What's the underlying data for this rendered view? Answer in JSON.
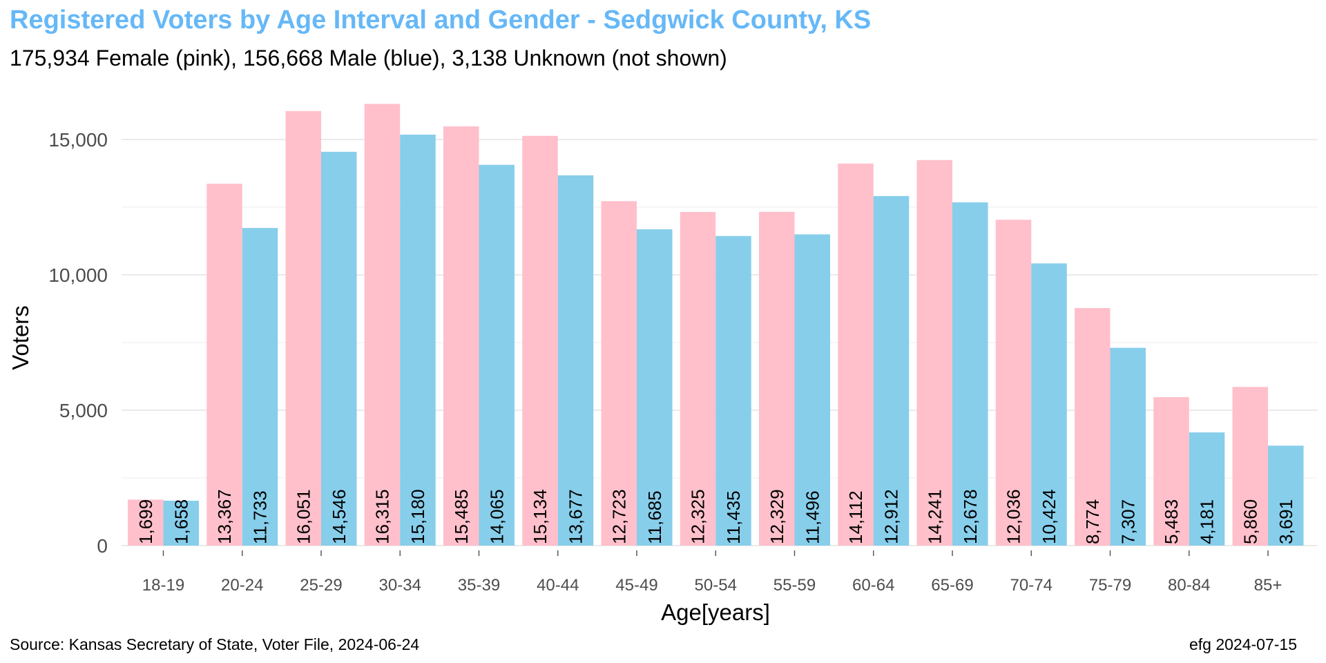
{
  "title": "Registered Voters by Age Interval and Gender - Sedgwick County, KS",
  "subtitle": "175,934 Female (pink),  156,668 Male (blue),  3,138 Unknown (not shown)",
  "caption_source": "Source: Kansas Secretary of State, Voter File, 2024-06-24",
  "caption_credit": "efg 2024-07-15",
  "chart_data": {
    "type": "bar",
    "title": "Registered Voters by Age Interval and Gender - Sedgwick County, KS",
    "subtitle": "175,934 Female (pink),  156,668 Male (blue),  3,138 Unknown (not shown)",
    "xlabel": "Age[years]",
    "ylabel": "Voters",
    "ylim": [
      0,
      16315
    ],
    "yticks": [
      0,
      5000,
      10000,
      15000
    ],
    "ytick_labels": [
      "0",
      "5,000",
      "10,000",
      "15,000"
    ],
    "grid": true,
    "legend": "none",
    "categories": [
      "18-19",
      "20-24",
      "25-29",
      "30-34",
      "35-39",
      "40-44",
      "45-49",
      "50-54",
      "55-59",
      "60-64",
      "65-69",
      "70-74",
      "75-79",
      "80-84",
      "85+"
    ],
    "series": [
      {
        "color": "#FFC0CB",
        "values": [
          1699,
          13367,
          16051,
          16315,
          15485,
          15134,
          12723,
          12325,
          12329,
          14112,
          14241,
          12036,
          8774,
          5483,
          5860
        ],
        "labels": [
          "1,699",
          "13,367",
          "16,051",
          "16,315",
          "15,485",
          "15,134",
          "12,723",
          "12,325",
          "12,329",
          "14,112",
          "14,241",
          "12,036",
          "8,774",
          "5,483",
          "5,860"
        ]
      },
      {
        "color": "#87CEEB",
        "values": [
          1658,
          11733,
          14546,
          15180,
          14065,
          13677,
          11685,
          11435,
          11496,
          12912,
          12678,
          10424,
          7307,
          4181,
          3691
        ],
        "labels": [
          "1,658",
          "11,733",
          "14,546",
          "15,180",
          "14,065",
          "13,677",
          "11,685",
          "11,435",
          "11,496",
          "12,912",
          "12,678",
          "10,424",
          "7,307",
          "4,181",
          "3,691"
        ]
      }
    ]
  }
}
